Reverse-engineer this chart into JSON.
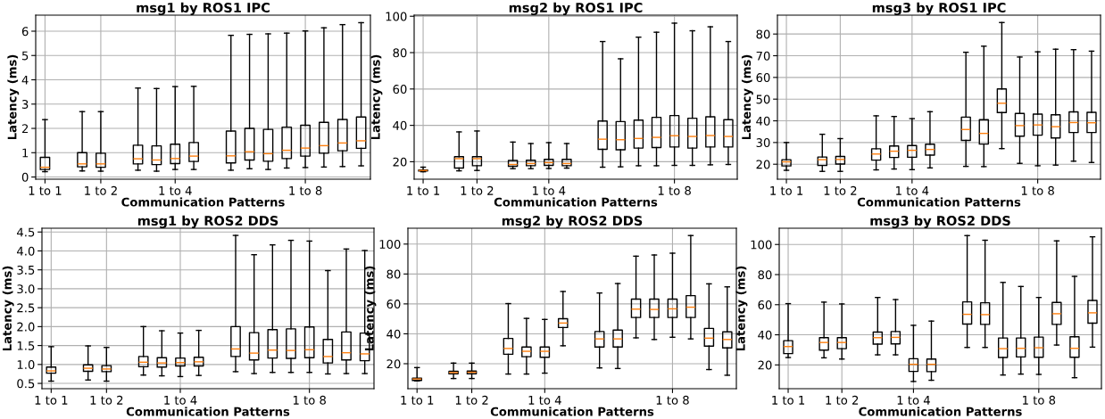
{
  "chart_data": [
    {
      "type": "box",
      "title": "msg1 by ROS1 IPC",
      "xlabel": "Communication Patterns",
      "ylabel": "Latency (ms)",
      "grid": true,
      "categories": [
        "1 to 1",
        null,
        null,
        "1 to 2",
        null,
        null,
        null,
        "1 to 4",
        null,
        null,
        null,
        null,
        null,
        null,
        "1 to 8",
        null,
        null,
        null
      ],
      "ylim": [
        -0.09,
        6.66
      ],
      "yticks": [
        0,
        1,
        2,
        3,
        4,
        5,
        6
      ],
      "boxes": [
        {
          "low": 0.22,
          "q1": 0.31,
          "median": 0.4,
          "q3": 0.81,
          "high": 2.36
        },
        null,
        {
          "low": 0.25,
          "q1": 0.42,
          "median": 0.54,
          "q3": 1.0,
          "high": 2.69
        },
        {
          "low": 0.24,
          "q1": 0.4,
          "median": 0.54,
          "q3": 0.98,
          "high": 2.69
        },
        null,
        {
          "low": 0.28,
          "q1": 0.54,
          "median": 0.75,
          "q3": 1.31,
          "high": 3.66
        },
        {
          "low": 0.24,
          "q1": 0.51,
          "median": 0.7,
          "q3": 1.28,
          "high": 3.64
        },
        {
          "low": 0.31,
          "q1": 0.55,
          "median": 0.76,
          "q3": 1.35,
          "high": 3.72
        },
        {
          "low": 0.31,
          "q1": 0.64,
          "median": 0.86,
          "q3": 1.42,
          "high": 3.73
        },
        null,
        {
          "low": 0.28,
          "q1": 0.58,
          "median": 0.87,
          "q3": 1.89,
          "high": 5.83
        },
        {
          "low": 0.34,
          "q1": 0.7,
          "median": 1.04,
          "q3": 2.0,
          "high": 5.87
        },
        {
          "low": 0.31,
          "q1": 0.65,
          "median": 0.96,
          "q3": 1.96,
          "high": 5.89
        },
        {
          "low": 0.37,
          "q1": 0.76,
          "median": 1.1,
          "q3": 2.05,
          "high": 5.92
        },
        {
          "low": 0.39,
          "q1": 0.86,
          "median": 1.19,
          "q3": 2.13,
          "high": 6.01
        },
        {
          "low": 0.41,
          "q1": 0.98,
          "median": 1.29,
          "q3": 2.25,
          "high": 6.14
        },
        {
          "low": 0.43,
          "q1": 1.08,
          "median": 1.4,
          "q3": 2.37,
          "high": 6.27
        },
        {
          "low": 0.46,
          "q1": 1.18,
          "median": 1.49,
          "q3": 2.47,
          "high": 6.35
        }
      ]
    },
    {
      "type": "box",
      "title": "msg2 by ROS1 IPC",
      "xlabel": "Communication Patterns",
      "ylabel": "Latency (ms)",
      "grid": true,
      "categories": [
        "1 to 1",
        null,
        null,
        "1 to 2",
        null,
        null,
        null,
        "1 to 4",
        null,
        null,
        null,
        null,
        null,
        null,
        "1 to 8",
        null,
        null,
        null
      ],
      "ylim": [
        10.4,
        100.6
      ],
      "yticks": [
        20,
        40,
        60,
        80,
        100
      ],
      "boxes": [
        {
          "low": 14.5,
          "q1": 14.9,
          "median": 15.2,
          "q3": 15.5,
          "high": 17.0
        },
        null,
        {
          "low": 15.0,
          "q1": 16.5,
          "median": 21.7,
          "q3": 22.8,
          "high": 36.4
        },
        {
          "low": 15.2,
          "q1": 17.8,
          "median": 21.7,
          "q3": 22.8,
          "high": 36.9
        },
        null,
        {
          "low": 16.2,
          "q1": 17.5,
          "median": 18.5,
          "q3": 20.7,
          "high": 30.8
        },
        {
          "low": 16.2,
          "q1": 17.8,
          "median": 19.0,
          "q3": 20.8,
          "high": 30.0
        },
        {
          "low": 16.3,
          "q1": 18.0,
          "median": 19.5,
          "q3": 21.3,
          "high": 30.5
        },
        {
          "low": 16.5,
          "q1": 17.8,
          "median": 19.0,
          "q3": 21.3,
          "high": 30.0
        },
        null,
        {
          "low": 17.0,
          "q1": 26.8,
          "median": 32.4,
          "q3": 42.4,
          "high": 86.1
        },
        {
          "low": 17.2,
          "q1": 26.6,
          "median": 32.1,
          "q3": 42.1,
          "high": 76.6
        },
        {
          "low": 17.8,
          "q1": 27.5,
          "median": 32.8,
          "q3": 42.9,
          "high": 88.5
        },
        {
          "low": 17.8,
          "q1": 27.8,
          "median": 33.4,
          "q3": 44.4,
          "high": 91.2
        },
        {
          "low": 18.0,
          "q1": 28.1,
          "median": 34.3,
          "q3": 45.4,
          "high": 96.2
        },
        {
          "low": 18.0,
          "q1": 27.5,
          "median": 33.9,
          "q3": 43.9,
          "high": 92.0
        },
        {
          "low": 18.3,
          "q1": 28.1,
          "median": 34.4,
          "q3": 44.7,
          "high": 94.2
        },
        {
          "low": 18.5,
          "q1": 28.1,
          "median": 33.9,
          "q3": 43.1,
          "high": 86.1
        }
      ]
    },
    {
      "type": "box",
      "title": "msg3 by ROS1 IPC",
      "xlabel": "Communication Patterns",
      "ylabel": "Latency (ms)",
      "grid": true,
      "categories": [
        "1 to 1",
        null,
        null,
        "1 to 2",
        null,
        null,
        null,
        "1 to 4",
        null,
        null,
        null,
        null,
        null,
        null,
        "1 to 8",
        null,
        null,
        null
      ],
      "ylim": [
        13.1,
        88.7
      ],
      "yticks": [
        20,
        30,
        40,
        50,
        60,
        70,
        80
      ],
      "boxes": [
        {
          "low": 17.2,
          "q1": 19.2,
          "median": 21.1,
          "q3": 22.1,
          "high": 30.0
        },
        null,
        {
          "low": 16.7,
          "q1": 19.4,
          "median": 22.1,
          "q3": 23.3,
          "high": 33.8
        },
        {
          "low": 16.7,
          "q1": 20.1,
          "median": 22.2,
          "q3": 23.6,
          "high": 31.8
        },
        null,
        {
          "low": 17.4,
          "q1": 21.9,
          "median": 24.7,
          "q3": 27.1,
          "high": 42.3
        },
        {
          "low": 17.8,
          "q1": 23.1,
          "median": 26.0,
          "q3": 28.4,
          "high": 42.0
        },
        {
          "low": 17.5,
          "q1": 23.2,
          "median": 26.4,
          "q3": 28.6,
          "high": 41.0
        },
        {
          "low": 18.3,
          "q1": 24.2,
          "median": 26.8,
          "q3": 29.2,
          "high": 44.2
        },
        null,
        {
          "low": 19.0,
          "q1": 31.0,
          "median": 36.0,
          "q3": 41.7,
          "high": 71.6
        },
        {
          "low": 18.9,
          "q1": 29.3,
          "median": 34.2,
          "q3": 40.5,
          "high": 74.4
        },
        {
          "low": 27.2,
          "q1": 43.8,
          "median": 48.1,
          "q3": 54.7,
          "high": 85.3
        },
        {
          "low": 20.4,
          "q1": 32.9,
          "median": 37.8,
          "q3": 43.4,
          "high": 69.4
        },
        {
          "low": 19.3,
          "q1": 33.4,
          "median": 38.1,
          "q3": 43.1,
          "high": 71.8
        },
        {
          "low": 19.6,
          "q1": 32.1,
          "median": 37.3,
          "q3": 42.8,
          "high": 73.0
        },
        {
          "low": 21.4,
          "q1": 34.6,
          "median": 39.2,
          "q3": 44.1,
          "high": 72.8
        },
        {
          "low": 20.8,
          "q1": 34.6,
          "median": 39.1,
          "q3": 43.9,
          "high": 72.1
        }
      ]
    },
    {
      "type": "box",
      "title": "msg1 by ROS2 DDS",
      "xlabel": "Communication Patterns",
      "ylabel": "Latency (ms)",
      "grid": true,
      "categories": [
        "1 to 1",
        null,
        null,
        "1 to 2",
        null,
        null,
        null,
        "1 to 4",
        null,
        null,
        null,
        null,
        null,
        null,
        "1 to 8",
        null,
        null,
        null
      ],
      "ylim": [
        0.36,
        4.6
      ],
      "yticks": [
        0.5,
        {
          "value": 1,
          "label": "1.0"
        },
        1.5,
        {
          "value": 2,
          "label": "2.0"
        },
        2.5,
        {
          "value": 3,
          "label": "3.0"
        },
        3.5,
        {
          "value": 4,
          "label": "4.0"
        },
        4.5
      ],
      "boxes": [
        {
          "low": 0.56,
          "q1": 0.77,
          "median": 0.83,
          "q3": 0.93,
          "high": 1.47
        },
        null,
        {
          "low": 0.59,
          "q1": 0.82,
          "median": 0.9,
          "q3": 0.99,
          "high": 1.49
        },
        {
          "low": 0.56,
          "q1": 0.81,
          "median": 0.88,
          "q3": 0.97,
          "high": 1.45
        },
        null,
        {
          "low": 0.72,
          "q1": 0.94,
          "median": 1.06,
          "q3": 1.21,
          "high": 2.0
        },
        {
          "low": 0.7,
          "q1": 0.93,
          "median": 1.04,
          "q3": 1.18,
          "high": 1.89
        },
        {
          "low": 0.68,
          "q1": 0.96,
          "median": 1.05,
          "q3": 1.17,
          "high": 1.83
        },
        {
          "low": 0.71,
          "q1": 0.96,
          "median": 1.07,
          "q3": 1.19,
          "high": 1.9
        },
        null,
        {
          "low": 0.81,
          "q1": 1.21,
          "median": 1.41,
          "q3": 2.0,
          "high": 4.41
        },
        {
          "low": 0.76,
          "q1": 1.12,
          "median": 1.3,
          "q3": 1.84,
          "high": 3.9
        },
        {
          "low": 0.79,
          "q1": 1.17,
          "median": 1.38,
          "q3": 1.92,
          "high": 4.16
        },
        {
          "low": 0.79,
          "q1": 1.16,
          "median": 1.37,
          "q3": 1.94,
          "high": 4.28
        },
        {
          "low": 0.79,
          "q1": 1.18,
          "median": 1.39,
          "q3": 1.99,
          "high": 4.26
        },
        {
          "low": 0.75,
          "q1": 1.04,
          "median": 1.21,
          "q3": 1.66,
          "high": 3.48
        },
        {
          "low": 0.76,
          "q1": 1.12,
          "median": 1.31,
          "q3": 1.86,
          "high": 4.05
        },
        {
          "low": 0.76,
          "q1": 1.1,
          "median": 1.28,
          "q3": 1.83,
          "high": 4.01
        }
      ]
    },
    {
      "type": "box",
      "title": "msg2 by ROS2 DDS",
      "xlabel": "Communication Patterns",
      "ylabel": "Latency (ms)",
      "grid": true,
      "categories": [
        "1 to 1",
        null,
        null,
        "1 to 2",
        null,
        null,
        null,
        "1 to 4",
        null,
        null,
        null,
        null,
        null,
        null,
        "1 to 8",
        null,
        null,
        null
      ],
      "ylim": [
        3.3,
        110.6
      ],
      "yticks": [
        20,
        40,
        60,
        80,
        100
      ],
      "boxes": [
        {
          "low": 8.5,
          "q1": 8.8,
          "median": 9.8,
          "q3": 10.3,
          "high": 17.4
        },
        null,
        {
          "low": 10.1,
          "q1": 13.3,
          "median": 14.1,
          "q3": 14.9,
          "high": 20.4
        },
        {
          "low": 10.1,
          "q1": 13.3,
          "median": 14.3,
          "q3": 15.1,
          "high": 20.4
        },
        null,
        {
          "low": 13.1,
          "q1": 26.3,
          "median": 30.2,
          "q3": 36.9,
          "high": 60.2
        },
        {
          "low": 13.1,
          "q1": 24.7,
          "median": 28.3,
          "q3": 31.2,
          "high": 50.3
        },
        {
          "low": 13.7,
          "q1": 24.3,
          "median": 28.3,
          "q3": 31.2,
          "high": 49.6
        },
        {
          "low": 32.0,
          "q1": 44.2,
          "median": 47.2,
          "q3": 50.1,
          "high": 68.3
        },
        null,
        {
          "low": 17.2,
          "q1": 31.2,
          "median": 36.6,
          "q3": 41.5,
          "high": 67.3
        },
        {
          "low": 16.8,
          "q1": 31.2,
          "median": 36.6,
          "q3": 42.5,
          "high": 73.6
        },
        {
          "low": 37.3,
          "q1": 50.9,
          "median": 56.5,
          "q3": 63.2,
          "high": 91.9
        },
        {
          "low": 36.2,
          "q1": 50.9,
          "median": 56.3,
          "q3": 63.2,
          "high": 92.7
        },
        {
          "low": 37.7,
          "q1": 50.9,
          "median": 56.7,
          "q3": 63.2,
          "high": 93.9
        },
        {
          "low": 36.6,
          "q1": 50.9,
          "median": 57.8,
          "q3": 65.5,
          "high": 105.7
        },
        {
          "low": 16.1,
          "q1": 31.8,
          "median": 37.1,
          "q3": 43.6,
          "high": 73.4
        },
        {
          "low": 12.3,
          "q1": 30.6,
          "median": 36.2,
          "q3": 41.3,
          "high": 71.4
        }
      ]
    },
    {
      "type": "box",
      "title": "msg3 by ROS2 DDS",
      "xlabel": "Communication Patterns",
      "ylabel": "Latency (ms)",
      "grid": true,
      "categories": [
        "1 to 1",
        null,
        null,
        "1 to 2",
        null,
        null,
        null,
        "1 to 4",
        null,
        null,
        null,
        null,
        null,
        null,
        "1 to 8",
        null,
        null,
        null
      ],
      "ylim": [
        4.2,
        110.8
      ],
      "yticks": [
        20,
        40,
        60,
        80,
        100
      ],
      "boxes": [
        {
          "low": 24.9,
          "q1": 27.5,
          "median": 32.2,
          "q3": 36.1,
          "high": 60.7
        },
        null,
        {
          "low": 24.7,
          "q1": 29.8,
          "median": 34.9,
          "q3": 38.1,
          "high": 61.7
        },
        {
          "low": 23.9,
          "q1": 30.8,
          "median": 34.9,
          "q3": 38.1,
          "high": 60.5
        },
        null,
        {
          "low": 26.7,
          "q1": 33.8,
          "median": 38.1,
          "q3": 41.8,
          "high": 64.8
        },
        {
          "low": 26.7,
          "q1": 34.0,
          "median": 38.3,
          "q3": 42.2,
          "high": 63.4
        },
        {
          "low": 9.0,
          "q1": 15.7,
          "median": 20.4,
          "q3": 24.1,
          "high": 46.3
        },
        {
          "low": 9.8,
          "q1": 15.5,
          "median": 20.4,
          "q3": 23.9,
          "high": 49.1
        },
        null,
        {
          "low": 31.6,
          "q1": 47.1,
          "median": 53.6,
          "q3": 61.9,
          "high": 105.9
        },
        {
          "low": 31.6,
          "q1": 46.9,
          "median": 53.4,
          "q3": 61.3,
          "high": 102.8
        },
        {
          "low": 13.3,
          "q1": 24.9,
          "median": 30.8,
          "q3": 37.9,
          "high": 74.8
        },
        {
          "low": 13.9,
          "q1": 25.3,
          "median": 31.0,
          "q3": 37.9,
          "high": 72.1
        },
        {
          "low": 13.7,
          "q1": 25.1,
          "median": 31.4,
          "q3": 38.5,
          "high": 64.8
        },
        {
          "low": 33.2,
          "q1": 46.9,
          "median": 54.0,
          "q3": 61.5,
          "high": 102.4
        },
        {
          "low": 11.5,
          "q1": 25.1,
          "median": 31.0,
          "q3": 38.7,
          "high": 78.8
        },
        {
          "low": 31.8,
          "q1": 47.7,
          "median": 54.6,
          "q3": 62.8,
          "high": 105.1
        }
      ]
    }
  ]
}
